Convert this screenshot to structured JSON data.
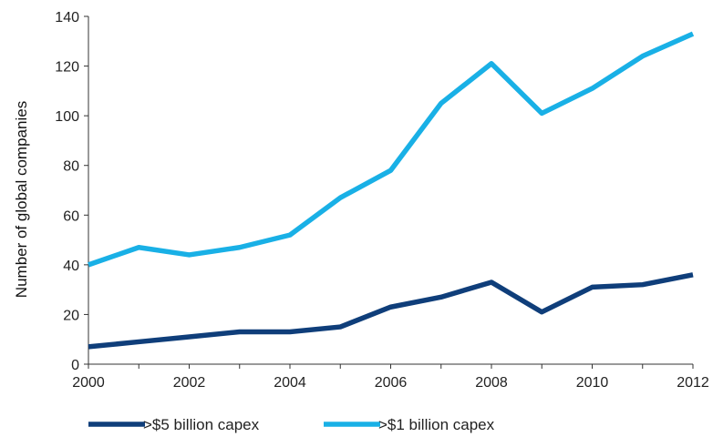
{
  "chart_data": {
    "type": "line",
    "title": "",
    "xlabel": "",
    "ylabel": "Number of global companies",
    "x": [
      2000,
      2001,
      2002,
      2003,
      2004,
      2005,
      2006,
      2007,
      2008,
      2009,
      2010,
      2011,
      2012
    ],
    "xticks": [
      "2000",
      "2002",
      "2004",
      "2006",
      "2008",
      "2010",
      "2012"
    ],
    "yticks": [
      "0",
      "20",
      "40",
      "60",
      "80",
      "100",
      "120",
      "140"
    ],
    "xlim": [
      2000,
      2012
    ],
    "ylim": [
      0,
      140
    ],
    "grid": false,
    "legend_position": "bottom-left",
    "series": [
      {
        "name": ">$5 billion capex",
        "color": "#0f3e7a",
        "values": [
          7,
          9,
          11,
          13,
          13,
          15,
          23,
          27,
          33,
          21,
          31,
          32,
          36
        ]
      },
      {
        "name": ">$1 billion capex",
        "color": "#19b0e6",
        "values": [
          40,
          47,
          44,
          47,
          52,
          67,
          78,
          105,
          121,
          101,
          111,
          124,
          133
        ]
      }
    ]
  }
}
